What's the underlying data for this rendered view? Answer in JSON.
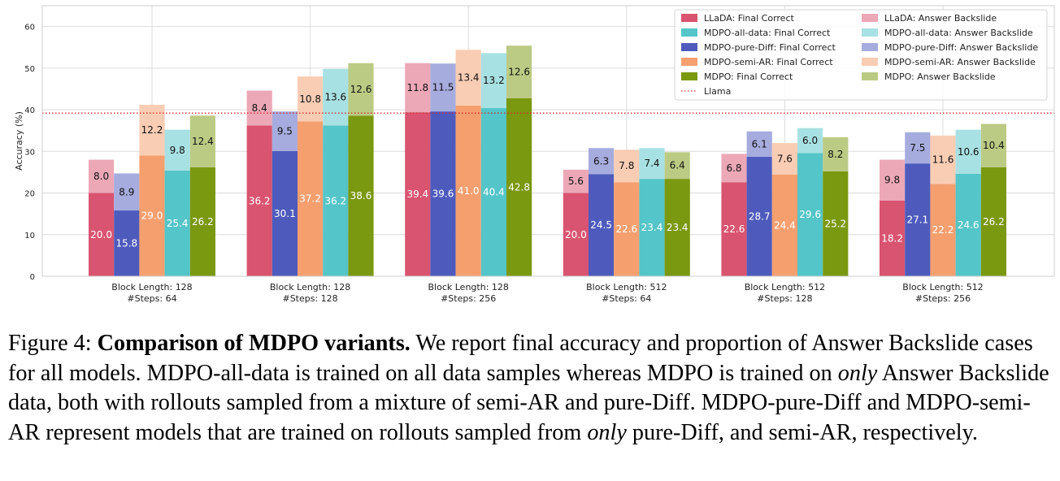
{
  "chart_data": {
    "type": "bar",
    "stacked_groups": true,
    "ylabel": "Accuracy (%)",
    "ylim": [
      0,
      65
    ],
    "yticks": [
      0,
      10,
      20,
      30,
      40,
      50,
      60
    ],
    "grid": true,
    "legend_position": "top-right",
    "categories": [
      [
        "Block Length: 128",
        "#Steps: 64"
      ],
      [
        "Block Length: 128",
        "#Steps: 128"
      ],
      [
        "Block Length: 128",
        "#Steps: 256"
      ],
      [
        "Block Length: 512",
        "#Steps: 64"
      ],
      [
        "Block Length: 512",
        "#Steps: 128"
      ],
      [
        "Block Length: 512",
        "#Steps: 256"
      ]
    ],
    "series": [
      {
        "model": "LLaDA",
        "final_label": "LLaDA: Final Correct",
        "backslide_label": "LLaDA: Answer Backslide",
        "color": "#d95470",
        "light_color": "#eca8b7",
        "final_correct": [
          20.0,
          36.2,
          39.4,
          20.0,
          22.6,
          18.2
        ],
        "answer_backslide": [
          8.0,
          8.4,
          11.8,
          5.6,
          6.8,
          9.8
        ]
      },
      {
        "model": "MDPO-pure-Diff",
        "final_label": "MDPO-pure-Diff: Final Correct",
        "backslide_label": "MDPO-pure-Diff: Answer Backslide",
        "color": "#4e5bbd",
        "light_color": "#a6acde",
        "final_correct": [
          15.8,
          30.1,
          39.6,
          24.5,
          28.7,
          27.1
        ],
        "answer_backslide": [
          8.9,
          9.5,
          11.5,
          6.3,
          6.1,
          7.5
        ]
      },
      {
        "model": "MDPO-semi-AR",
        "final_label": "MDPO-semi-AR: Final Correct",
        "backslide_label": "MDPO-semi-AR: Answer Backslide",
        "color": "#f59f6f",
        "light_color": "#f9cdb4",
        "final_correct": [
          29.0,
          37.2,
          41.0,
          22.6,
          24.4,
          22.2
        ],
        "answer_backslide": [
          12.2,
          10.8,
          13.4,
          7.8,
          7.6,
          11.6
        ]
      },
      {
        "model": "MDPO-all-data",
        "final_label": "MDPO-all-data: Final Correct",
        "backslide_label": "MDPO-all-data: Answer Backslide",
        "color": "#54c5c8",
        "light_color": "#a8e1e3",
        "final_correct": [
          25.4,
          36.2,
          40.4,
          23.4,
          29.6,
          24.6
        ],
        "answer_backslide": [
          9.8,
          13.6,
          13.2,
          7.4,
          6.0,
          10.6
        ]
      },
      {
        "model": "MDPO",
        "final_label": "MDPO: Final Correct",
        "backslide_label": "MDPO: Answer Backslide",
        "color": "#7b9811",
        "light_color": "#bbcb84",
        "final_correct": [
          26.2,
          38.6,
          42.8,
          23.4,
          25.2,
          26.2
        ],
        "answer_backslide": [
          12.4,
          12.6,
          12.6,
          6.4,
          8.2,
          10.4
        ]
      }
    ],
    "reference_line": {
      "name": "Llama",
      "value": 39.2,
      "color": "#d62728",
      "style": "dotted"
    },
    "legend_order": [
      [
        "LLaDA: Final Correct",
        "#d95470"
      ],
      [
        "MDPO-all-data: Final Correct",
        "#54c5c8"
      ],
      [
        "MDPO-pure-Diff: Final Correct",
        "#4e5bbd"
      ],
      [
        "MDPO-semi-AR: Final Correct",
        "#f59f6f"
      ],
      [
        "MDPO: Final Correct",
        "#7b9811"
      ],
      [
        "Llama",
        "line"
      ],
      [
        "LLaDA: Answer Backslide",
        "#eca8b7"
      ],
      [
        "MDPO-all-data: Answer Backslide",
        "#a8e1e3"
      ],
      [
        "MDPO-pure-Diff: Answer Backslide",
        "#a6acde"
      ],
      [
        "MDPO-semi-AR: Answer Backslide",
        "#f9cdb4"
      ],
      [
        "MDPO: Answer Backslide",
        "#bbcb84"
      ]
    ]
  },
  "caption": {
    "figure_label": "Figure 4:",
    "title": "Comparison of MDPO variants.",
    "text_1": "We report final accuracy and proportion of Answer Backslide cases for all models. MDPO-all-data is trained on all data samples whereas MDPO is trained on",
    "only_1": "only",
    "text_2": "Answer Backslide data, both with rollouts sampled from a mixture of semi-AR and pure-Diff. MDPO-pure-Diff and MDPO-semi-AR represent models that are trained on rollouts sampled from",
    "only_2": "only",
    "text_3": "pure-Diff, and semi-AR, respectively."
  }
}
